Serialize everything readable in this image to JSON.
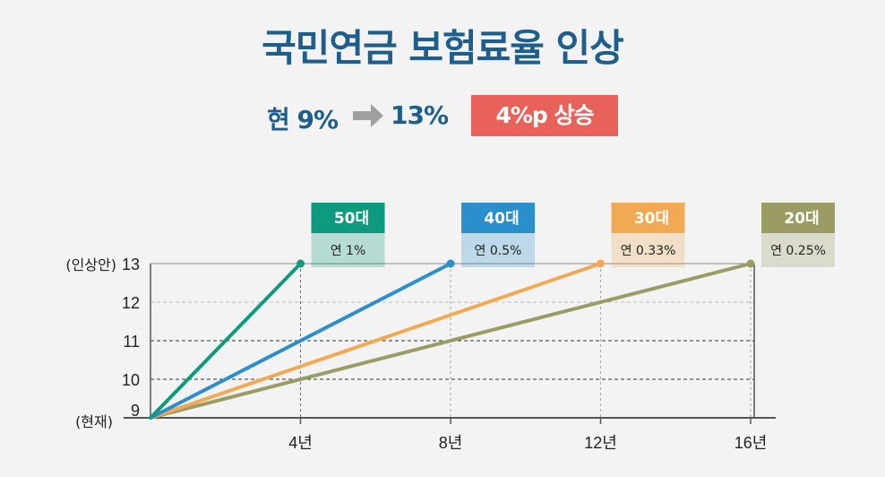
{
  "title": "국민연금 보험료율 인상",
  "rate": {
    "current": "현 9%",
    "target": "13%",
    "increase": "4%p 상승"
  },
  "colors": {
    "title": "#1d5e8d",
    "badge": "#e8625a",
    "s50": "#0d9a7e",
    "s40": "#2b8fcc",
    "s30": "#f2a954",
    "s20": "#9b9c63"
  },
  "icons": {
    "arrow": "right-arrow-icon"
  },
  "chart_data": {
    "type": "line",
    "xlim": [
      0,
      16
    ],
    "ylim": [
      9,
      13
    ],
    "x_ticks": [
      {
        "value": 4,
        "label": "4년"
      },
      {
        "value": 8,
        "label": "8년"
      },
      {
        "value": 12,
        "label": "12년"
      },
      {
        "value": 16,
        "label": "16년"
      }
    ],
    "y_ticks": [
      {
        "value": 9,
        "label": "9"
      },
      {
        "value": 10,
        "label": "10"
      },
      {
        "value": 11,
        "label": "11"
      },
      {
        "value": 12,
        "label": "12"
      },
      {
        "value": 13,
        "label": "13"
      }
    ],
    "y_annotations": [
      {
        "value": 13,
        "label": "(인상안)"
      },
      {
        "value": 9,
        "label": "(현재)"
      }
    ],
    "series": [
      {
        "name": "50대",
        "rate_label": "연 1%",
        "color": "#0d9a7e",
        "x": [
          0,
          4
        ],
        "y": [
          9,
          13
        ]
      },
      {
        "name": "40대",
        "rate_label": "연 0.5%",
        "color": "#2b8fcc",
        "x": [
          0,
          8
        ],
        "y": [
          9,
          13
        ]
      },
      {
        "name": "30대",
        "rate_label": "연 0.33%",
        "color": "#f2a954",
        "x": [
          0,
          12
        ],
        "y": [
          9,
          13
        ]
      },
      {
        "name": "20대",
        "rate_label": "연 0.25%",
        "color": "#9b9c63",
        "x": [
          0,
          16
        ],
        "y": [
          9,
          13
        ]
      }
    ]
  }
}
